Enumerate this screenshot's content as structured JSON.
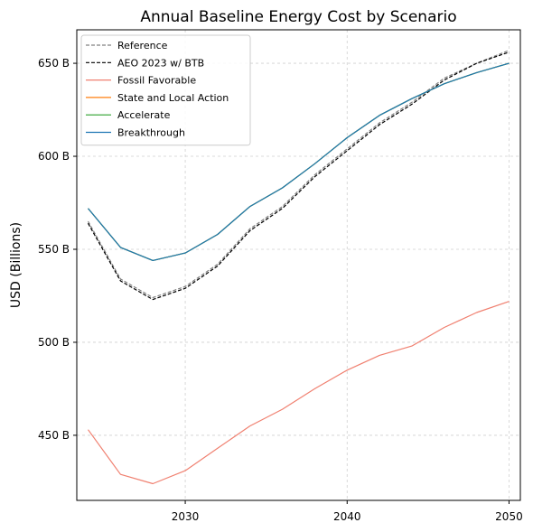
{
  "chart_data": {
    "type": "line",
    "title": "Annual Baseline Energy Cost by Scenario",
    "xlabel": "",
    "ylabel": "USD (Billions)",
    "xlim": [
      2023.3,
      2050.7
    ],
    "ylim": [
      415,
      668
    ],
    "xticks": [
      2030,
      2040,
      2050
    ],
    "yticks": [
      450,
      500,
      550,
      600,
      650
    ],
    "ytick_labels": [
      "450 B",
      "500 B",
      "550 B",
      "600 B",
      "650 B"
    ],
    "grid": true,
    "legend_position": "top-left",
    "x": [
      2024,
      2026,
      2028,
      2030,
      2032,
      2034,
      2036,
      2038,
      2040,
      2042,
      2044,
      2046,
      2048,
      2050
    ],
    "series": [
      {
        "name": "Reference",
        "color": "#808080",
        "dash": "dashed",
        "values": [
          565,
          534,
          524,
          530,
          542,
          561,
          573,
          590,
          604,
          618,
          629,
          642,
          650,
          657
        ]
      },
      {
        "name": "AEO 2023 w/ BTB",
        "color": "#000000",
        "dash": "dashed",
        "values": [
          564,
          533,
          523,
          529,
          541,
          560,
          572,
          589,
          603,
          617,
          628,
          641,
          650,
          656
        ]
      },
      {
        "name": "Fossil Favorable",
        "color": "#f08070",
        "dash": "solid",
        "values": [
          453,
          429,
          424,
          431,
          443,
          455,
          464,
          475,
          485,
          493,
          498,
          508,
          516,
          522
        ]
      },
      {
        "name": "State and Local Action",
        "color": "#ff7f0e",
        "dash": "solid",
        "values": [
          572,
          551,
          544,
          548,
          558,
          573,
          583,
          596,
          610,
          622,
          631,
          639,
          645,
          650
        ]
      },
      {
        "name": "Accelerate",
        "color": "#2ca02c",
        "dash": "solid",
        "values": [
          572,
          551,
          544,
          548,
          558,
          573,
          583,
          596,
          610,
          622,
          631,
          639,
          645,
          650
        ]
      },
      {
        "name": "Breakthrough",
        "color": "#1f77b4",
        "dash": "solid",
        "values": [
          572,
          551,
          544,
          548,
          558,
          573,
          583,
          596,
          610,
          622,
          631,
          639,
          645,
          650
        ]
      }
    ]
  }
}
